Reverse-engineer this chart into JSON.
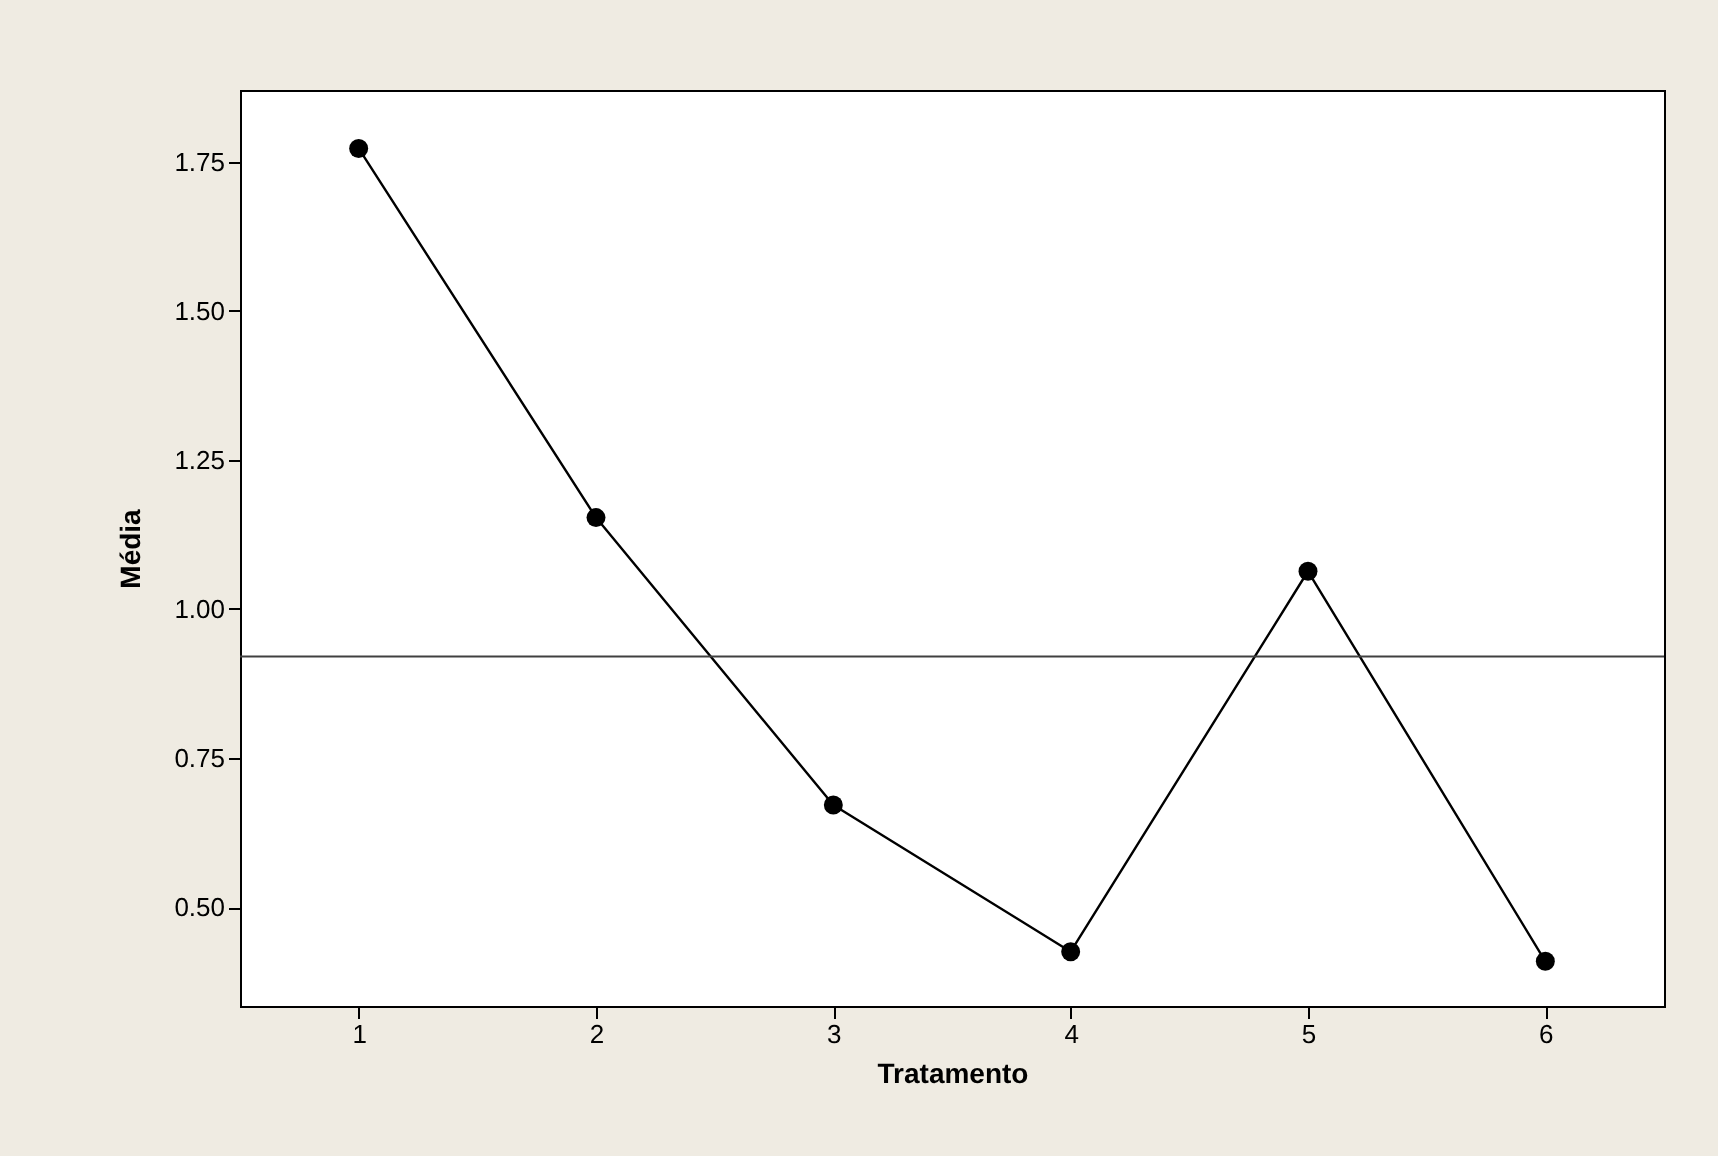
{
  "chart_data": {
    "type": "line",
    "xlabel": "Tratamento",
    "ylabel": "Média",
    "x": [
      1,
      2,
      3,
      4,
      5,
      6
    ],
    "series": [
      {
        "color": "#000000",
        "values": [
          1.772,
          1.153,
          0.671,
          0.425,
          1.063,
          0.409
        ]
      }
    ],
    "xlim": [
      0.5,
      6.5
    ],
    "xticks": [
      1,
      2,
      3,
      4,
      5,
      6
    ],
    "ylim": [
      0.334,
      1.87
    ],
    "yticks": [
      {
        "value": 0.5,
        "label": "0.50"
      },
      {
        "value": 0.75,
        "label": "0.75"
      },
      {
        "value": 1.0,
        "label": "1.00"
      },
      {
        "value": 1.25,
        "label": "1.25"
      },
      {
        "value": 1.5,
        "label": "1.50"
      },
      {
        "value": 1.75,
        "label": "1.75"
      }
    ],
    "ref_lines": [
      {
        "axis": "y",
        "value": 0.92,
        "color": "#404040"
      }
    ],
    "marker": "circle",
    "line_style": "solid",
    "grid": false
  }
}
